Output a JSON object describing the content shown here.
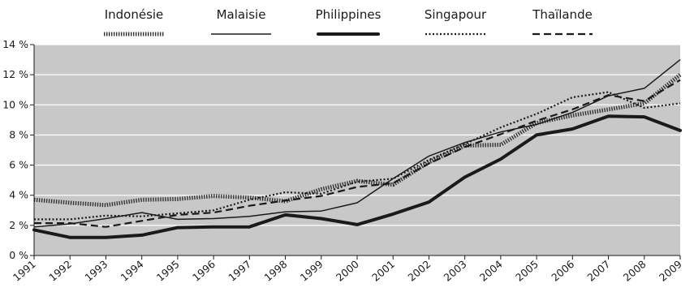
{
  "chart_data": {
    "type": "line",
    "title": "",
    "xlabel": "",
    "ylabel": "",
    "x": [
      "1991",
      "1992",
      "1993",
      "1994",
      "1995",
      "1996",
      "1997",
      "1998",
      "1999",
      "2000",
      "2001",
      "2002",
      "2003",
      "2004",
      "2005",
      "2006",
      "2007",
      "2008",
      "2009"
    ],
    "ylim": [
      0,
      14
    ],
    "yticks": [
      0,
      2,
      4,
      6,
      8,
      10,
      12,
      14
    ],
    "ytick_labels": [
      "0 %",
      "2 %",
      "4 %",
      "6 %",
      "8 %",
      "10 %",
      "12 %",
      "14 %"
    ],
    "grid": "horizontal",
    "legend_position": "top",
    "plot_background": "#c8c8c8",
    "series": [
      {
        "name": "Indonésie",
        "style": "hatched",
        "color": "#333333",
        "values": [
          3.7,
          3.5,
          3.35,
          3.7,
          3.75,
          3.95,
          3.85,
          3.6,
          4.4,
          4.95,
          4.7,
          6.2,
          7.3,
          7.35,
          8.8,
          9.3,
          9.7,
          10.1,
          12.0
        ]
      },
      {
        "name": "Malaisie",
        "style": "thin-solid",
        "color": "#1a1a1a",
        "values": [
          1.9,
          2.1,
          2.45,
          2.85,
          2.4,
          2.45,
          2.6,
          2.9,
          2.95,
          3.5,
          5.1,
          6.6,
          7.5,
          8.2,
          8.7,
          9.5,
          10.6,
          11.1,
          13.0
        ]
      },
      {
        "name": "Philippines",
        "style": "thick-solid",
        "color": "#1a1a1a",
        "values": [
          1.7,
          1.2,
          1.2,
          1.35,
          1.85,
          1.9,
          1.9,
          2.7,
          2.45,
          2.05,
          2.75,
          3.55,
          5.2,
          6.4,
          8.0,
          8.4,
          9.25,
          9.2,
          8.3
        ]
      },
      {
        "name": "Singapour",
        "style": "dotted",
        "color": "#1a1a1a",
        "values": [
          2.4,
          2.4,
          2.65,
          2.6,
          2.8,
          3.0,
          3.7,
          4.2,
          4.1,
          4.9,
          5.1,
          6.35,
          7.4,
          8.5,
          9.4,
          10.5,
          10.85,
          9.8,
          10.1
        ]
      },
      {
        "name": "Thaïlande",
        "style": "dashed",
        "color": "#1a1a1a",
        "values": [
          2.15,
          2.15,
          1.9,
          2.3,
          2.7,
          2.85,
          3.3,
          3.65,
          3.95,
          4.55,
          4.8,
          6.1,
          7.2,
          8.05,
          8.95,
          9.7,
          10.65,
          10.25,
          11.65
        ]
      }
    ]
  }
}
